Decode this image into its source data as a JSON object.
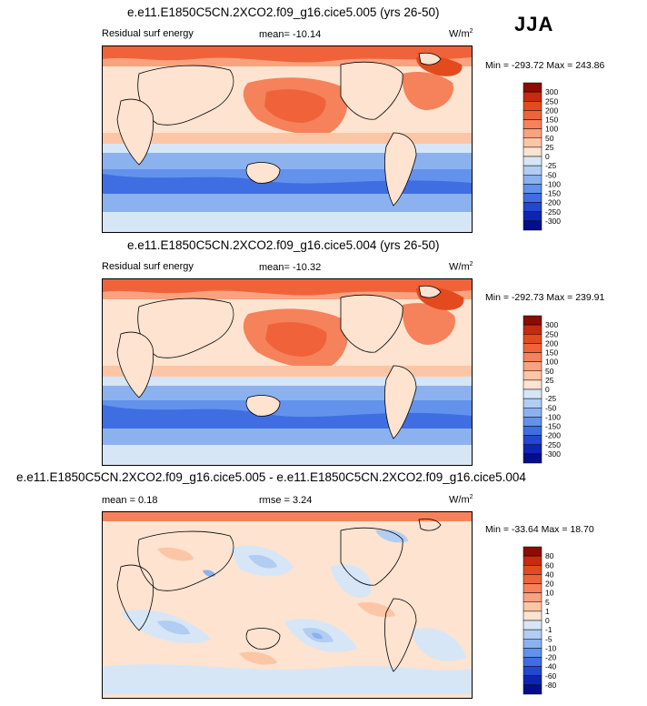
{
  "season": "JJA",
  "chart_data": [
    {
      "type": "heatmap",
      "title": "e.e11.E1850C5CN.2XCO2.f09_g16.cice5.005 (yrs 26-50)",
      "variable_label": "Residual surf energy",
      "stat_text": "mean= -10.14",
      "units_base": "W/m",
      "units_exp": "2",
      "minmax_text": "Min = -293.72 Max = 243.86",
      "min": -293.72,
      "max": 243.86,
      "mean": -10.14,
      "colorbar_levels": [
        "300",
        "250",
        "200",
        "150",
        "100",
        "50",
        "25",
        "0",
        "-25",
        "-50",
        "-100",
        "-150",
        "-200",
        "-250",
        "-300"
      ],
      "colorbar_colors": [
        "#8b0c00",
        "#c8290f",
        "#e34a1e",
        "#f0633a",
        "#f5825a",
        "#f9a27f",
        "#fcc6a6",
        "#fde3d0",
        "#d6e6f7",
        "#b1cdf1",
        "#8bb2ee",
        "#6392ec",
        "#3f6ee3",
        "#2347cd",
        "#0e24b4",
        "#030f8a"
      ]
    },
    {
      "type": "heatmap",
      "title": "e.e11.E1850C5CN.2XCO2.f09_g16.cice5.004 (yrs 26-50)",
      "variable_label": "Residual surf energy",
      "stat_text": "mean= -10.32",
      "units_base": "W/m",
      "units_exp": "2",
      "minmax_text": "Min = -292.73 Max = 239.91",
      "min": -292.73,
      "max": 239.91,
      "mean": -10.32,
      "colorbar_levels": [
        "300",
        "250",
        "200",
        "150",
        "100",
        "50",
        "25",
        "0",
        "-25",
        "-50",
        "-100",
        "-150",
        "-200",
        "-250",
        "-300"
      ],
      "colorbar_colors": [
        "#8b0c00",
        "#c8290f",
        "#e34a1e",
        "#f0633a",
        "#f5825a",
        "#f9a27f",
        "#fcc6a6",
        "#fde3d0",
        "#d6e6f7",
        "#b1cdf1",
        "#8bb2ee",
        "#6392ec",
        "#3f6ee3",
        "#2347cd",
        "#0e24b4",
        "#030f8a"
      ]
    },
    {
      "type": "heatmap",
      "title": "e.e11.E1850C5CN.2XCO2.f09_g16.cice5.005 - e.e11.E1850C5CN.2XCO2.f09_g16.cice5.004",
      "variable_label": "mean =  0.18",
      "stat_text": "rmse =  3.24",
      "units_base": "W/m",
      "units_exp": "2",
      "minmax_text": "Min = -33.64 Max =  18.70",
      "min": -33.64,
      "max": 18.7,
      "mean": 0.18,
      "rmse": 3.24,
      "colorbar_levels": [
        "80",
        "60",
        "40",
        "20",
        "10",
        "5",
        "1",
        "0",
        "-1",
        "-5",
        "-10",
        "-20",
        "-40",
        "-60",
        "-80"
      ],
      "colorbar_colors": [
        "#8b0c00",
        "#c8290f",
        "#e34a1e",
        "#f0633a",
        "#f5825a",
        "#f9a27f",
        "#fcc6a6",
        "#fde3d0",
        "#d6e6f7",
        "#b1cdf1",
        "#8bb2ee",
        "#6392ec",
        "#3f6ee3",
        "#2347cd",
        "#0e24b4",
        "#030f8a"
      ]
    }
  ]
}
